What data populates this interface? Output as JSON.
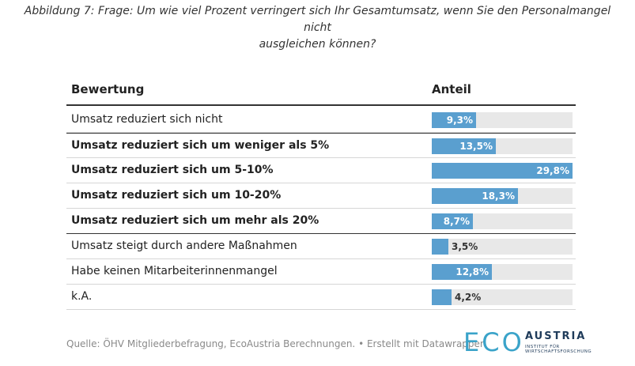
{
  "caption": {
    "line1": "Abbildung 7: Frage: Um wie viel Prozent verringert sich Ihr Gesamtumsatz, wenn Sie den Personalmangel nicht",
    "line2": "ausgleichen können?"
  },
  "table_headers": {
    "col1": "Bewertung",
    "col2": "Anteil"
  },
  "chart_data": {
    "type": "bar",
    "orientation": "horizontal",
    "title": "",
    "categories": [
      "Umsatz reduziert sich nicht",
      "Umsatz reduziert sich um weniger als 5%",
      "Umsatz reduziert sich um 5-10%",
      "Umsatz reduziert sich um 10-20%",
      "Umsatz reduziert sich um mehr als 20%",
      "Umsatz steigt durch andere Maßnahmen",
      "Habe keinen Mitarbeiterinnenmangel",
      "k.A."
    ],
    "values": [
      9.3,
      13.5,
      29.8,
      18.3,
      8.7,
      3.5,
      12.8,
      4.2
    ],
    "value_labels": [
      "9,3%",
      "13,5%",
      "29,8%",
      "18,3%",
      "8,7%",
      "3,5%",
      "12,8%",
      "4,2%"
    ],
    "bold_rows": [
      false,
      true,
      true,
      true,
      true,
      false,
      false,
      false
    ],
    "xlim": [
      0,
      29.8
    ],
    "bar_color": "#5a9fcf",
    "track_color": "#e8e8e8"
  },
  "source": "Quelle: ÖHV Mitgliederbefragung, EcoAustria Berechnungen. • Erstellt mit Datawrapper",
  "logo": {
    "eco": "ECO",
    "austria": "AUSTRIA",
    "sub": "INSTITUT FÜR WIRTSCHAFTSFORSCHUNG",
    "color_eco": "#3aa3c9",
    "color_text": "#1f3b5a"
  }
}
